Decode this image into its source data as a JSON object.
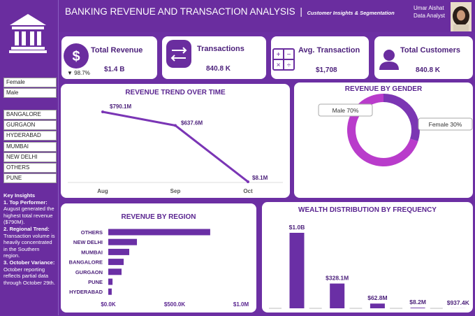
{
  "header": {
    "title": "BANKING REVENUE AND TRANSACTION ANALYSIS",
    "separator": "|",
    "subtitle": "Customer Insights & Segmentation",
    "user_name": "Umar Aishat",
    "user_role": "Data Analyst"
  },
  "kpis": [
    {
      "label": "Total Revenue",
      "value": "$1.4 B",
      "change": "▼ 98.7%"
    },
    {
      "label": "Transactions",
      "value": "840.8 K"
    },
    {
      "label": "Avg. Transaction",
      "value": "$1,708"
    },
    {
      "label": "Total Customers",
      "value": "840.8 K"
    }
  ],
  "filters": {
    "gender": [
      "Female",
      "Male"
    ],
    "city": [
      "BANGALORE",
      "GURGAON",
      "HYDERABAD",
      "MUMBAI",
      "NEW DELHI",
      "OTHERS",
      "PUNE"
    ]
  },
  "insights": {
    "title": "Key Insights",
    "items": [
      {
        "heading": "1. Top Performer:",
        "text": "August generated the highest total revenue ($790M)."
      },
      {
        "heading": "2. Regional Trend:",
        "text": "Transaction volume is heavily concentrated in the Southern region."
      },
      {
        "heading": "3. October Variance:",
        "text": "October reporting reflects partial data through October 29th."
      }
    ]
  },
  "chart_data": [
    {
      "type": "line",
      "title": "REVENUE TREND OVER TIME",
      "categories": [
        "Aug",
        "Sep",
        "Oct"
      ],
      "values": [
        790.1,
        637.6,
        8.1
      ],
      "value_labels": [
        "$790.1M",
        "$637.6M",
        "$8.1M"
      ],
      "color": "#7a35b5"
    },
    {
      "type": "donut",
      "title": "REVENUE BY GENDER",
      "values": [
        70,
        30
      ],
      "value_labels": [
        "Male 70%",
        "Female 30%"
      ],
      "colors": [
        "#b93ccb",
        "#7b36b3"
      ]
    },
    {
      "type": "hbar",
      "title": "REVENUE BY REGION",
      "categories": [
        "OTHERS",
        "NEW DELHI",
        "MUMBAI",
        "BANGALORE",
        "GURGAON",
        "PUNE",
        "HYDERABAD"
      ],
      "values": [
        768000,
        216000,
        158000,
        116000,
        100000,
        32000,
        26000
      ],
      "color": "#6a2fa5",
      "xlim": [
        0,
        1000000
      ],
      "xticks": [
        {
          "value": 0,
          "label": "$0.0K"
        },
        {
          "value": 500000,
          "label": "$500.0K"
        },
        {
          "value": 1000000,
          "label": "$1.0M"
        }
      ]
    },
    {
      "type": "bar",
      "title": "WEALTH DISTRIBUTION BY FREQUENCY",
      "values": [
        1000000000,
        328100000,
        62800000,
        8200000,
        937400
      ],
      "value_labels": [
        "$1.0B",
        "$328.1M",
        "$62.8M",
        "$8.2M",
        "$937.4K"
      ],
      "color": "#6a2fa5"
    }
  ]
}
